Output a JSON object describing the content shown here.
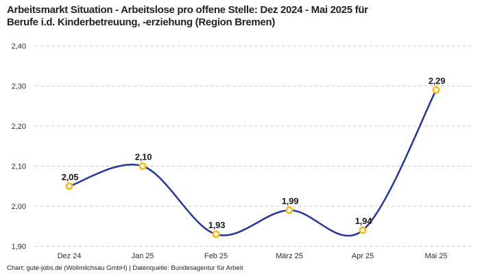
{
  "header": {
    "title_lines": [
      "Arbeitsmarkt Situation - Arbeitslose pro offene Stelle: Dez 2024 - Mai 2025 für",
      "Berufe i.d. Kinderbetreuung, -erziehung (Region Bremen)"
    ]
  },
  "chart_data": {
    "type": "line",
    "title": "Arbeitsmarkt Situation - Arbeitslose pro offene Stelle: Dez 2024 - Mai 2025 für Berufe i.d. Kinderbetreuung, -erziehung (Region Bremen)",
    "categories": [
      "Dez 24",
      "Jan 25",
      "Feb 25",
      "März 25",
      "Apr 25",
      "Mai 25"
    ],
    "values": [
      2.05,
      2.1,
      1.93,
      1.99,
      1.94,
      2.29
    ],
    "value_labels": [
      "2,05",
      "2,10",
      "1,93",
      "1,99",
      "1,94",
      "2,29"
    ],
    "xlabel": "",
    "ylabel": "",
    "ylim": [
      1.9,
      2.4
    ],
    "yticks": [
      1.9,
      2.0,
      2.1,
      2.2,
      2.3,
      2.4
    ],
    "ytick_labels": [
      "1,90",
      "2,00",
      "2,10",
      "2,20",
      "2,30",
      "2,40"
    ],
    "grid": "horizontal-dashed",
    "legend": "none",
    "line_style": "smooth-spline",
    "colors": {
      "line": "#22359c",
      "marker_ring": "#fbb917",
      "marker_fill": "#ffffff",
      "grid": "#c8c8c8",
      "data_label": "#1a1a1a",
      "axis_text": "#2e2e2e",
      "background": "#ffffff"
    }
  },
  "footer": {
    "credit": "Chart: gute-jobs.de (Wollmilchsau GmbH) | Datenquelle: Bundesagentur für Arbeit"
  }
}
